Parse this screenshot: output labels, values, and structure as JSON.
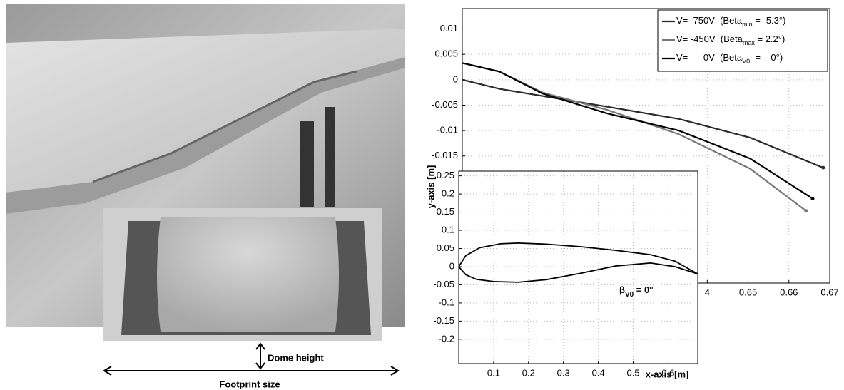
{
  "photo": {
    "dome_label": "Dome height",
    "footprint_label": "Footprint size"
  },
  "chart_data": [
    {
      "type": "line",
      "xlabel": "x-axis [m]",
      "ylabel": "y-axis [m]",
      "xlim": [
        0.58,
        0.67
      ],
      "ylim": [
        -0.04,
        0.014
      ],
      "xticks": [
        {
          "value": 0.64,
          "label": "4"
        },
        0.65,
        0.66,
        0.67
      ],
      "yticks": [
        0.01,
        0.005,
        0,
        -0.005,
        -0.01,
        -0.015
      ],
      "grid": true,
      "legend": "upper right",
      "series": [
        {
          "name": [
            "V=  750V  (Beta",
            "min",
            " = -5.3°)"
          ],
          "color": "#2a2a2a",
          "x": [
            0.58,
            0.5891,
            0.5996,
            0.6154,
            0.633,
            0.6505,
            0.6684
          ],
          "values": [
            0,
            -0.0018,
            -0.0032,
            -0.0053,
            -0.0077,
            -0.0114,
            -0.0173
          ]
        },
        {
          "name": [
            "V= -450V  (Beta",
            "max",
            " = 2.2°)"
          ],
          "color": "#777777",
          "x": [
            0.58,
            0.5891,
            0.5996,
            0.6154,
            0.633,
            0.6505,
            0.6642
          ],
          "values": [
            0.0033,
            0.0016,
            -0.0025,
            -0.0059,
            -0.0107,
            -0.0175,
            -0.0258
          ]
        },
        {
          "name": [
            "V=      0V  (Beta",
            "V0",
            "  =    0°)"
          ],
          "color": "#000000",
          "x": [
            0.58,
            0.5891,
            0.5996,
            0.6154,
            0.633,
            0.6505,
            0.6658
          ],
          "values": [
            0.0033,
            0.0016,
            -0.0027,
            -0.0066,
            -0.01,
            -0.0155,
            -0.0234
          ]
        }
      ]
    },
    {
      "type": "line",
      "xlim": [
        0,
        0.685
      ],
      "ylim": [
        -0.267,
        0.263
      ],
      "xticks": [
        0.1,
        0.2,
        0.3,
        0.4,
        0.5,
        0.6
      ],
      "yticks": [
        0.25,
        0.2,
        0.15,
        0.1,
        0.05,
        0,
        -0.05,
        -0.1,
        -0.15,
        -0.2
      ],
      "grid": true,
      "annotation": [
        "β",
        "V0",
        " = 0°"
      ],
      "series": [
        {
          "color": "#000000",
          "x": [
            0,
            0.02,
            0.06,
            0.12,
            0.17,
            0.25,
            0.35,
            0.45,
            0.55,
            0.62,
            0.685
          ],
          "values": [
            0,
            0.03,
            0.052,
            0.063,
            0.065,
            0.062,
            0.055,
            0.045,
            0.033,
            0.015,
            -0.02
          ]
        },
        {
          "color": "#000000",
          "x": [
            0,
            0.02,
            0.05,
            0.1,
            0.17,
            0.25,
            0.35,
            0.45,
            0.55,
            0.62,
            0.685
          ],
          "values": [
            0,
            -0.022,
            -0.035,
            -0.041,
            -0.043,
            -0.036,
            -0.018,
            0.002,
            0.01,
            0,
            -0.02
          ]
        }
      ]
    }
  ]
}
